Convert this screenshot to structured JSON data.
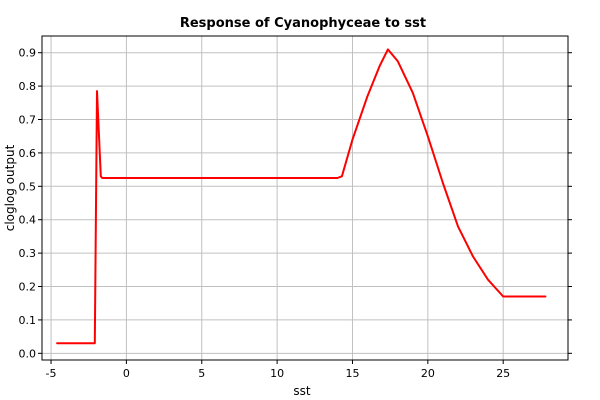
{
  "chart_data": {
    "type": "line",
    "title": "Response of Cyanophyceae to sst",
    "xlabel": "sst",
    "ylabel": "cloglog output",
    "xlim": [
      -5.6,
      29.3
    ],
    "ylim": [
      -0.02,
      0.95
    ],
    "xticks": [
      -5,
      0,
      5,
      10,
      15,
      20,
      25
    ],
    "xtick_labels": [
      "-5",
      "0",
      "5",
      "10",
      "15",
      "20",
      "25"
    ],
    "yticks": [
      0.0,
      0.1,
      0.2,
      0.3,
      0.4,
      0.5,
      0.6,
      0.7,
      0.8,
      0.9
    ],
    "ytick_labels": [
      "0.0",
      "0.1",
      "0.2",
      "0.3",
      "0.4",
      "0.5",
      "0.6",
      "0.7",
      "0.8",
      "0.9"
    ],
    "grid": true,
    "series": [
      {
        "color": "#ff0000",
        "x": [
          -4.6,
          -2.1,
          -1.95,
          -1.7,
          -1.6,
          14.0,
          14.3,
          15.0,
          16.0,
          16.8,
          17.35,
          18.0,
          19.0,
          20.0,
          21.0,
          22.0,
          23.0,
          24.0,
          25.0,
          25.1,
          27.8
        ],
        "y": [
          0.03,
          0.03,
          0.785,
          0.53,
          0.525,
          0.525,
          0.53,
          0.64,
          0.77,
          0.86,
          0.91,
          0.875,
          0.78,
          0.65,
          0.51,
          0.38,
          0.29,
          0.22,
          0.17,
          0.17,
          0.17
        ]
      }
    ]
  }
}
